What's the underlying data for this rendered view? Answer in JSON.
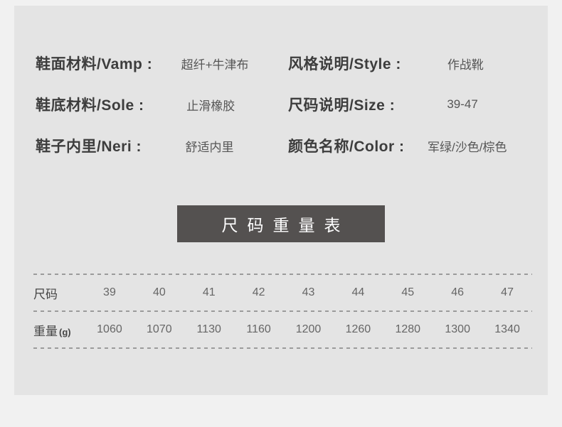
{
  "colors": {
    "page_bg": "#f1f1f1",
    "card_bg": "#e4e4e4",
    "banner_bg": "#545150",
    "banner_text": "#ffffff",
    "label_text": "#3d3d3d",
    "value_text": "#565656",
    "table_text": "#666666",
    "divider": "#9b9b9b"
  },
  "specs": {
    "left": [
      {
        "label": "鞋面材料/Vamp :",
        "value": "超纤+牛津布"
      },
      {
        "label": "鞋底材料/Sole :",
        "value": "止滑橡胶"
      },
      {
        "label": "鞋子内里/Neri :",
        "value": "舒适内里"
      }
    ],
    "right": [
      {
        "label": "风格说明/Style :",
        "value": "作战靴"
      },
      {
        "label": "尺码说明/Size :",
        "value": "39-47"
      },
      {
        "label": "颜色名称/Color :",
        "value": "军绿/沙色/棕色"
      }
    ]
  },
  "banner": {
    "title": "尺码重量表"
  },
  "size_table": {
    "size_row_label": "尺码",
    "weight_row_label": "重量",
    "weight_unit": "(g)",
    "sizes": [
      "39",
      "40",
      "41",
      "42",
      "43",
      "44",
      "45",
      "46",
      "47"
    ],
    "weights": [
      "1060",
      "1070",
      "1130",
      "1160",
      "1200",
      "1260",
      "1280",
      "1300",
      "1340"
    ]
  },
  "chart_data": {
    "type": "table",
    "title": "尺码重量表",
    "row_headers": [
      "尺码",
      "重量(g)"
    ],
    "sizes": [
      39,
      40,
      41,
      42,
      43,
      44,
      45,
      46,
      47
    ],
    "weights_g": [
      1060,
      1070,
      1130,
      1160,
      1200,
      1260,
      1280,
      1300,
      1340
    ]
  }
}
